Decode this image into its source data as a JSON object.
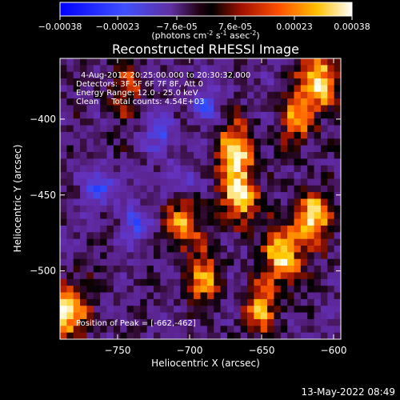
{
  "colorbar": {
    "ticks": [
      "-0.00038",
      "-0.00023",
      "-7.6e-05",
      "7.6e-05",
      "0.00023",
      "0.00038"
    ],
    "tick_values": [
      -0.00038,
      -0.00023,
      -7.6e-05,
      7.6e-05,
      0.00023,
      0.00038
    ],
    "range": [
      -0.00038,
      0.00038
    ],
    "units_main": "(photons cm",
    "units_exp1": "-2",
    "units_mid": " s",
    "units_exp2": "-1",
    "units_tail": " asec",
    "units_exp3": "-2",
    "units_close": ")"
  },
  "chart_data": {
    "type": "heatmap",
    "title": "Reconstructed RHESSI Image",
    "xlabel": "Heliocentric X (arcsec)",
    "ylabel": "Heliocentric Y (arcsec)",
    "xlim": [
      -790,
      -595
    ],
    "ylim": [
      -545,
      -360
    ],
    "xticks": [
      -750,
      -700,
      -650,
      -600
    ],
    "xtick_labels": [
      "−750",
      "−700",
      "−650",
      "−600"
    ],
    "yticks": [
      -400,
      -450,
      -500
    ],
    "ytick_labels": [
      "−400",
      "−450",
      "−500"
    ],
    "info_lines": [
      "4-Aug-2012 20:25:00.000 to 20:30:32.000",
      "Detectors: 3F 5F 6F 7F 8F, Att 0",
      "Energy Range: 12.0 - 25.0 keV",
      "Clean     Total counts: 4.54E+03"
    ],
    "peak_label": "Position of Peak = [-662,-462]",
    "peak_position": [
      -662,
      -462
    ],
    "colormap": [
      "#0000ff",
      "#4060ff",
      "#6030c0",
      "#602080",
      "#000000",
      "#801000",
      "#e03000",
      "#ff8000",
      "#ffd000",
      "#ffffff"
    ],
    "bright_regions": [
      {
        "x": -665,
        "y": -450,
        "level": 0.95
      },
      {
        "x": -668,
        "y": -420,
        "level": 0.8
      },
      {
        "x": -635,
        "y": -490,
        "level": 0.9
      },
      {
        "x": -615,
        "y": -465,
        "level": 0.85
      },
      {
        "x": -610,
        "y": -375,
        "level": 0.9
      },
      {
        "x": -785,
        "y": -525,
        "level": 1.0
      },
      {
        "x": -705,
        "y": -470,
        "level": 0.7
      },
      {
        "x": -690,
        "y": -505,
        "level": 0.6
      },
      {
        "x": -650,
        "y": -525,
        "level": 0.65
      },
      {
        "x": -625,
        "y": -400,
        "level": 0.6
      },
      {
        "x": -745,
        "y": -380,
        "level": 0.4
      }
    ],
    "negative_regions": [
      {
        "x": -760,
        "y": -445,
        "level": 0.7
      },
      {
        "x": -720,
        "y": -410,
        "level": 0.6
      },
      {
        "x": -690,
        "y": -390,
        "level": 0.5
      },
      {
        "x": -735,
        "y": -470,
        "level": 0.6
      },
      {
        "x": -710,
        "y": -440,
        "level": 0.5
      }
    ]
  },
  "footer_timestamp": "13-May-2022 08:49"
}
